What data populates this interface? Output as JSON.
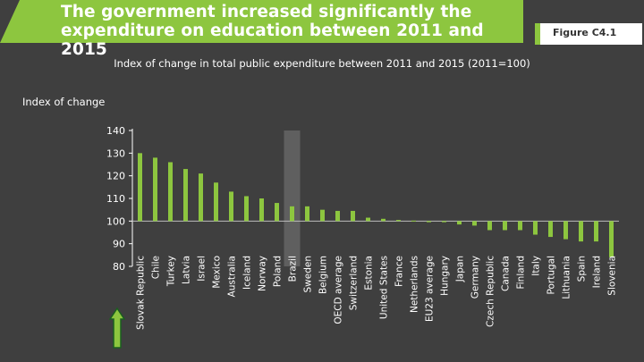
{
  "header": {
    "title": "The government increased significantly the expenditure on education between 2011 and 2015",
    "figure_label": "Figure C4.1",
    "subtitle": "Index of change in total public expenditure between 2011 and 2015 (2011=100)"
  },
  "colors": {
    "accent": "#8dc63f",
    "bar": "#8dc63f",
    "background": "#3f3f3f",
    "highlight_band": "#5f5f5f",
    "text": "#ffffff"
  },
  "icons": {
    "sort_indicator": "up-arrow-icon"
  },
  "chart_data": {
    "type": "bar",
    "title": "Index of change in total public expenditure between 2011 and 2015 (2011=100)",
    "ylabel": "Index of change",
    "xlabel": "",
    "ylim": [
      80,
      140
    ],
    "yticks": [
      80,
      90,
      100,
      110,
      120,
      130,
      140
    ],
    "baseline": 100,
    "highlight": "Brazil",
    "sort_order": "descending",
    "categories": [
      "Slovak Republic",
      "Chile",
      "Turkey",
      "Latvia",
      "Israel",
      "Mexico",
      "Australia",
      "Iceland",
      "Norway",
      "Poland",
      "Brazil",
      "Sweden",
      "Belgium",
      "OECD average",
      "Switzerland",
      "Estonia",
      "United States",
      "France",
      "Netherlands",
      "EU23 average",
      "Hungary",
      "Japan",
      "Germany",
      "Czech Republic",
      "Canada",
      "Finland",
      "Italy",
      "Portugal",
      "Lithuania",
      "Spain",
      "Ireland",
      "Slovenia"
    ],
    "values": [
      130,
      128,
      126,
      123,
      121,
      117,
      113,
      111,
      110,
      108,
      106.5,
      106.5,
      105,
      104.5,
      104.5,
      101.5,
      101,
      100.5,
      100.2,
      99.5,
      99.5,
      98.5,
      98,
      96,
      96,
      96,
      94,
      93,
      92,
      91,
      91,
      84
    ]
  }
}
